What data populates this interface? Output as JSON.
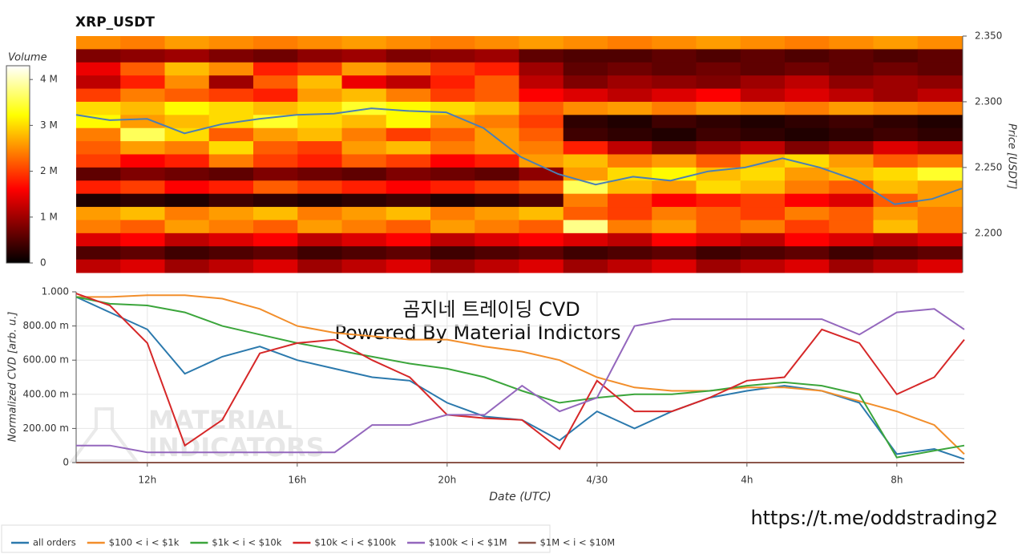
{
  "chart_data": [
    {
      "type": "heatmap",
      "title": "XRP_USDT",
      "y_label": "Price [USDT]",
      "colorbar_label": "Volume",
      "xlim": [
        10.1,
        33.8
      ],
      "ylim": [
        2.17,
        2.35
      ],
      "yticks": [
        {
          "value": 2.2,
          "label": "2.200"
        },
        {
          "value": 2.25,
          "label": "2.250"
        },
        {
          "value": 2.3,
          "label": "2.300"
        },
        {
          "value": 2.35,
          "label": "2.350"
        }
      ],
      "clim": [
        0,
        4.3
      ],
      "cticks": [
        0,
        {
          "value": 1,
          "label": "1 M"
        },
        {
          "value": 2,
          "label": "2 M"
        },
        {
          "value": 3,
          "label": "3 M"
        },
        {
          "value": 4,
          "label": "4 M"
        }
      ],
      "values": [
        [
          2.5,
          2.4,
          2.6,
          2.5,
          2.4,
          2.5,
          2.6,
          2.5,
          2.4,
          2.5,
          2.6,
          2.5,
          2.4,
          2.5,
          2.6,
          2.5,
          2.4,
          2.5,
          2.6,
          2.5
        ],
        [
          0.8,
          0.9,
          1.0,
          0.8,
          0.7,
          0.9,
          1.0,
          0.8,
          0.9,
          1.0,
          0.6,
          0.5,
          0.5,
          0.6,
          0.5,
          0.6,
          0.5,
          0.6,
          0.5,
          0.6
        ],
        [
          1.5,
          2.2,
          2.8,
          2.5,
          1.8,
          2.0,
          2.6,
          2.4,
          2.0,
          1.8,
          1.0,
          0.6,
          0.7,
          0.6,
          0.7,
          0.6,
          0.7,
          0.6,
          0.7,
          0.6
        ],
        [
          1.2,
          1.8,
          2.5,
          1.0,
          2.2,
          2.8,
          1.5,
          1.2,
          1.8,
          2.2,
          1.2,
          0.8,
          1.0,
          0.9,
          0.8,
          1.0,
          1.2,
          0.9,
          1.0,
          0.9
        ],
        [
          2.0,
          2.4,
          2.2,
          2.0,
          1.8,
          2.6,
          2.8,
          2.4,
          2.0,
          2.2,
          1.6,
          1.4,
          1.2,
          1.4,
          1.6,
          1.2,
          1.4,
          1.2,
          1.0,
          1.2
        ],
        [
          3.0,
          2.8,
          3.2,
          3.0,
          2.8,
          3.0,
          3.4,
          3.2,
          3.0,
          2.8,
          2.2,
          2.5,
          2.6,
          2.4,
          2.6,
          2.5,
          2.4,
          2.6,
          2.5,
          2.4
        ],
        [
          3.2,
          2.6,
          2.8,
          3.0,
          3.4,
          3.0,
          2.8,
          3.2,
          2.6,
          2.4,
          2.0,
          0.3,
          0.2,
          0.4,
          0.3,
          0.2,
          0.3,
          0.4,
          0.3,
          0.2
        ],
        [
          2.4,
          3.6,
          3.0,
          2.2,
          2.6,
          2.8,
          2.4,
          2.0,
          2.2,
          2.6,
          2.2,
          0.4,
          0.3,
          0.2,
          0.4,
          0.3,
          0.2,
          0.3,
          0.4,
          0.3
        ],
        [
          2.2,
          2.6,
          2.4,
          3.0,
          2.2,
          2.0,
          2.6,
          2.8,
          2.4,
          2.6,
          2.4,
          1.8,
          1.2,
          0.8,
          1.0,
          1.2,
          0.8,
          1.0,
          1.4,
          1.2
        ],
        [
          2.0,
          1.6,
          1.8,
          2.4,
          2.0,
          1.8,
          2.2,
          2.0,
          1.6,
          1.8,
          2.6,
          2.8,
          2.4,
          2.6,
          2.2,
          2.8,
          3.0,
          2.6,
          2.2,
          2.4
        ],
        [
          0.6,
          0.8,
          0.7,
          0.6,
          0.8,
          0.7,
          0.6,
          0.8,
          0.7,
          0.6,
          0.9,
          2.6,
          3.0,
          3.2,
          2.8,
          3.0,
          2.6,
          2.8,
          3.0,
          3.4
        ],
        [
          1.8,
          2.0,
          1.6,
          1.8,
          2.2,
          2.0,
          1.8,
          1.6,
          1.8,
          2.0,
          2.2,
          3.6,
          2.8,
          2.6,
          3.0,
          2.8,
          2.4,
          2.2,
          2.8,
          2.6
        ],
        [
          0.2,
          0.3,
          0.2,
          0.4,
          0.3,
          0.2,
          0.3,
          0.4,
          0.2,
          0.3,
          0.5,
          2.4,
          2.0,
          1.6,
          1.8,
          2.0,
          1.6,
          1.4,
          2.2,
          2.6
        ],
        [
          2.6,
          2.8,
          2.4,
          2.6,
          2.8,
          2.4,
          2.6,
          2.8,
          2.4,
          2.6,
          2.8,
          2.2,
          2.0,
          2.4,
          2.2,
          2.0,
          2.4,
          2.2,
          2.6,
          2.4
        ],
        [
          2.4,
          2.2,
          2.6,
          2.4,
          2.2,
          2.6,
          2.4,
          2.2,
          2.6,
          2.4,
          2.2,
          3.8,
          2.4,
          2.6,
          2.2,
          2.4,
          2.0,
          2.2,
          2.8,
          2.4
        ],
        [
          1.4,
          1.6,
          1.2,
          1.4,
          1.6,
          1.2,
          1.4,
          1.6,
          1.2,
          1.4,
          1.6,
          1.4,
          1.2,
          1.6,
          1.4,
          1.2,
          1.6,
          1.4,
          1.2,
          1.4
        ],
        [
          0.5,
          0.6,
          0.4,
          0.5,
          0.6,
          0.4,
          0.5,
          0.6,
          0.4,
          0.5,
          0.6,
          0.4,
          0.5,
          0.6,
          0.4,
          0.5,
          0.6,
          0.4,
          0.5,
          0.6
        ],
        [
          1.2,
          1.4,
          1.0,
          1.2,
          1.4,
          1.0,
          1.2,
          1.4,
          1.0,
          1.2,
          1.4,
          1.0,
          1.2,
          1.4,
          1.0,
          1.2,
          1.4,
          1.0,
          1.2,
          1.4
        ]
      ],
      "price": {
        "color": "#4a7fb5",
        "x": [
          10.1,
          11,
          12,
          13,
          14,
          15,
          16,
          17,
          18,
          19,
          20,
          21,
          22,
          23,
          24,
          25,
          26,
          27,
          28,
          29,
          30,
          31,
          32,
          33,
          33.8
        ],
        "values": [
          2.29,
          2.286,
          2.287,
          2.276,
          2.283,
          2.287,
          2.29,
          2.291,
          2.295,
          2.293,
          2.292,
          2.28,
          2.258,
          2.245,
          2.237,
          2.243,
          2.24,
          2.247,
          2.25,
          2.257,
          2.25,
          2.24,
          2.222,
          2.226,
          2.234
        ]
      }
    },
    {
      "type": "line",
      "x_label": "Date (UTC)",
      "y_label": "Normalized CVD [arb. u.]",
      "grid": true,
      "legend": "bottom",
      "annotations": [
        "곰지네 트레이딩 CVD",
        "Powered By Material Indictors"
      ],
      "watermark": [
        "MATERIAL",
        "INDICATORS"
      ],
      "link": "https://t.me/oddstrading2",
      "xlim": [
        10.1,
        33.8
      ],
      "ylim": [
        0,
        1
      ],
      "xticks": [
        {
          "value": 12,
          "label": "12h"
        },
        {
          "value": 16,
          "label": "16h"
        },
        {
          "value": 20,
          "label": "20h"
        },
        {
          "value": 24,
          "label": "4/30"
        },
        {
          "value": 28,
          "label": "4h"
        },
        {
          "value": 32,
          "label": "8h"
        }
      ],
      "yticks": [
        0,
        {
          "value": 0.2,
          "label": "200.00 m"
        },
        {
          "value": 0.4,
          "label": "400.00 m"
        },
        {
          "value": 0.6,
          "label": "600.00 m"
        },
        {
          "value": 0.8,
          "label": "800.00 m"
        },
        {
          "value": 1,
          "label": "1.000"
        }
      ],
      "x": [
        10.1,
        11,
        12,
        13,
        14,
        15,
        16,
        17,
        18,
        19,
        20,
        21,
        22,
        23,
        24,
        25,
        26,
        27,
        28,
        29,
        30,
        31,
        32,
        33,
        33.8
      ],
      "series": [
        {
          "name": "all orders",
          "color": "#2b79ad",
          "values": [
            0.97,
            0.88,
            0.78,
            0.52,
            0.62,
            0.68,
            0.6,
            0.55,
            0.5,
            0.48,
            0.35,
            0.27,
            0.25,
            0.13,
            0.3,
            0.2,
            0.3,
            0.38,
            0.42,
            0.45,
            0.42,
            0.35,
            0.05,
            0.08,
            0.02
          ]
        },
        {
          "name": "$100 < i < $1k",
          "color": "#f28e2b",
          "values": [
            0.97,
            0.97,
            0.98,
            0.98,
            0.96,
            0.9,
            0.8,
            0.76,
            0.74,
            0.72,
            0.72,
            0.68,
            0.65,
            0.6,
            0.5,
            0.44,
            0.42,
            0.42,
            0.44,
            0.44,
            0.42,
            0.36,
            0.3,
            0.22,
            0.05
          ]
        },
        {
          "name": "$1k < i < $10k",
          "color": "#3ba53b",
          "values": [
            0.97,
            0.93,
            0.92,
            0.88,
            0.8,
            0.75,
            0.7,
            0.66,
            0.62,
            0.58,
            0.55,
            0.5,
            0.42,
            0.35,
            0.38,
            0.4,
            0.4,
            0.42,
            0.45,
            0.47,
            0.45,
            0.4,
            0.03,
            0.07,
            0.1
          ]
        },
        {
          "name": "$10k < i < $100k",
          "color": "#d62728",
          "values": [
            0.99,
            0.92,
            0.7,
            0.1,
            0.25,
            0.64,
            0.7,
            0.72,
            0.6,
            0.5,
            0.28,
            0.26,
            0.25,
            0.08,
            0.48,
            0.3,
            0.3,
            0.38,
            0.48,
            0.5,
            0.78,
            0.7,
            0.4,
            0.5,
            0.72
          ]
        },
        {
          "name": "$100k < i < $1M",
          "color": "#9467bd",
          "values": [
            0.1,
            0.1,
            0.06,
            0.06,
            0.06,
            0.06,
            0.06,
            0.06,
            0.22,
            0.22,
            0.28,
            0.28,
            0.45,
            0.3,
            0.38,
            0.8,
            0.84,
            0.84,
            0.84,
            0.84,
            0.84,
            0.75,
            0.88,
            0.9,
            0.78
          ]
        },
        {
          "name": "$1M < i < $10M",
          "color": "#8c564b",
          "values": [
            0,
            0,
            0,
            0,
            0,
            0,
            0,
            0,
            0,
            0,
            0,
            0,
            0,
            0,
            0,
            0,
            0,
            0,
            0,
            0,
            0,
            0,
            0,
            0,
            0
          ]
        }
      ]
    }
  ]
}
